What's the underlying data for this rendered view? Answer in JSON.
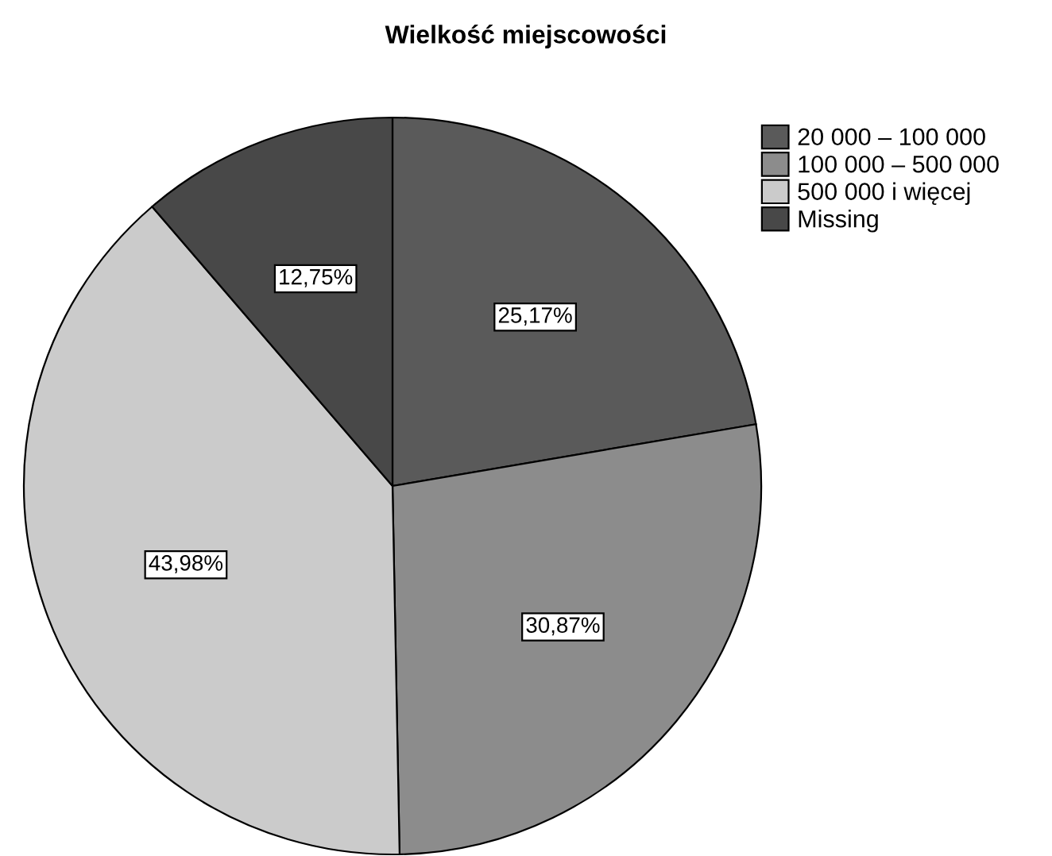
{
  "chart_data": {
    "type": "pie",
    "title": "Wielkość miejscowości",
    "categories": [
      "20 000 – 100 000",
      "100 000 – 500 000",
      "500 000 i więcej",
      "Missing"
    ],
    "values": [
      25.17,
      30.87,
      43.98,
      12.75
    ],
    "value_labels": [
      "25,17%",
      "30,87%",
      "43,98%",
      "12,75%"
    ],
    "colors": [
      "#5a5a5a",
      "#8c8c8c",
      "#cbcbcb",
      "#484848"
    ],
    "legend": "top right"
  }
}
